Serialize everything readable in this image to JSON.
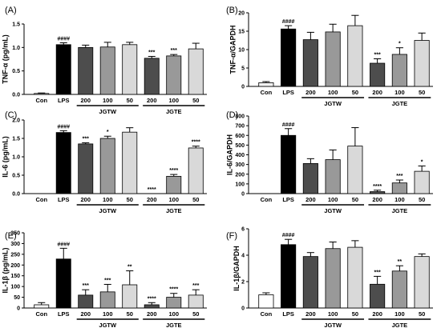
{
  "page_colors": {
    "background": "#ffffff",
    "axis": "#000000"
  },
  "chart_data": [
    {
      "type": "bar",
      "panel": "(A)",
      "ylabel": "TNF-α (pg/mL)",
      "ylim": [
        0,
        1.5
      ],
      "yticks": [
        0.0,
        0.5,
        1.0,
        1.5
      ],
      "ytick_labels": [
        "0.0",
        "0.5",
        "1.0",
        "1.5"
      ],
      "categories": [
        "Con",
        "LPS",
        "200",
        "100",
        "50",
        "200",
        "100",
        "50"
      ],
      "values": [
        0.02,
        1.06,
        1.0,
        1.01,
        1.06,
        0.77,
        0.82,
        0.97
      ],
      "errors": [
        0.01,
        0.04,
        0.05,
        0.1,
        0.05,
        0.04,
        0.03,
        0.12
      ],
      "significance": [
        "",
        "####",
        "",
        "",
        "",
        "***",
        "***",
        ""
      ],
      "colors": [
        "#f2f2f2",
        "#000000",
        "#4d4d4d",
        "#999999",
        "#d9d9d9",
        "#4d4d4d",
        "#999999",
        "#d9d9d9"
      ],
      "groups": [
        {
          "label": "JGTW",
          "from": 2,
          "to": 4
        },
        {
          "label": "JGTE",
          "from": 5,
          "to": 7
        }
      ]
    },
    {
      "type": "bar",
      "panel": "(B)",
      "ylabel": "TNF-α/GAPDH",
      "ylim": [
        0,
        20
      ],
      "yticks": [
        0,
        5,
        10,
        15,
        20
      ],
      "ytick_labels": [
        "0",
        "5",
        "10",
        "15",
        "20"
      ],
      "categories": [
        "Con",
        "LPS",
        "200",
        "100",
        "50",
        "200",
        "100",
        "50"
      ],
      "values": [
        1.0,
        15.6,
        12.7,
        14.8,
        16.5,
        6.3,
        8.7,
        12.5
      ],
      "errors": [
        0.3,
        0.9,
        2.0,
        2.1,
        2.8,
        1.2,
        1.8,
        2.0
      ],
      "significance": [
        "",
        "####",
        "",
        "",
        "",
        "***",
        "*",
        ""
      ],
      "colors": [
        "#f2f2f2",
        "#000000",
        "#4d4d4d",
        "#999999",
        "#d9d9d9",
        "#4d4d4d",
        "#999999",
        "#d9d9d9"
      ],
      "groups": [
        {
          "label": "JGTW",
          "from": 2,
          "to": 4
        },
        {
          "label": "JGTE",
          "from": 5,
          "to": 7
        }
      ]
    },
    {
      "type": "bar",
      "panel": "(C)",
      "ylabel": "IL-6 (pg/mL)",
      "ylim": [
        0,
        2.0
      ],
      "yticks": [
        0.0,
        0.5,
        1.0,
        1.5,
        2.0
      ],
      "ytick_labels": [
        "0.0",
        "0.5",
        "1.0",
        "1.5",
        "2.0"
      ],
      "categories": [
        "Con",
        "LPS",
        "200",
        "100",
        "50",
        "200",
        "100",
        "50"
      ],
      "values": [
        0.0,
        1.66,
        1.35,
        1.5,
        1.67,
        0.0,
        0.47,
        1.24
      ],
      "errors": [
        0.0,
        0.05,
        0.03,
        0.06,
        0.12,
        0.0,
        0.05,
        0.05
      ],
      "significance": [
        "",
        "####",
        "***",
        "*",
        "",
        "****",
        "****",
        "****"
      ],
      "colors": [
        "#f2f2f2",
        "#000000",
        "#4d4d4d",
        "#999999",
        "#d9d9d9",
        "#4d4d4d",
        "#999999",
        "#d9d9d9"
      ],
      "groups": [
        {
          "label": "JGTW",
          "from": 2,
          "to": 4
        },
        {
          "label": "JGTE",
          "from": 5,
          "to": 7
        }
      ]
    },
    {
      "type": "bar",
      "panel": "(D)",
      "ylabel": "IL-6/GAPDH",
      "ylim": [
        0,
        800
      ],
      "yticks": [
        0,
        100,
        200,
        300,
        400,
        500,
        600,
        700,
        800
      ],
      "ytick_labels": [
        "0",
        "100",
        "200",
        "300",
        "400",
        "500",
        "600",
        "700",
        "800"
      ],
      "categories": [
        "Con",
        "LPS",
        "200",
        "100",
        "50",
        "200",
        "100",
        "50"
      ],
      "values": [
        0,
        600,
        310,
        350,
        490,
        20,
        110,
        230
      ],
      "errors": [
        0,
        70,
        50,
        100,
        190,
        15,
        30,
        55
      ],
      "significance": [
        "",
        "####",
        "",
        "",
        "",
        "****",
        "***",
        "*"
      ],
      "colors": [
        "#f2f2f2",
        "#000000",
        "#4d4d4d",
        "#999999",
        "#d9d9d9",
        "#4d4d4d",
        "#999999",
        "#d9d9d9"
      ],
      "groups": [
        {
          "label": "JGTW",
          "from": 2,
          "to": 4
        },
        {
          "label": "JGTE",
          "from": 5,
          "to": 7
        }
      ]
    },
    {
      "type": "bar",
      "panel": "(E)",
      "ylabel": "IL-1β (pg/mL)",
      "ylim": [
        0,
        350
      ],
      "yticks": [
        0,
        50,
        100,
        150,
        200,
        250,
        300,
        350
      ],
      "ytick_labels": [
        "0",
        "50",
        "100",
        "150",
        "200",
        "250",
        "300",
        "350"
      ],
      "categories": [
        "Con",
        "LPS",
        "200",
        "100",
        "50",
        "200",
        "100",
        "50"
      ],
      "values": [
        15,
        228,
        60,
        75,
        108,
        15,
        50,
        60
      ],
      "errors": [
        10,
        50,
        25,
        35,
        65,
        10,
        18,
        25
      ],
      "significance": [
        "",
        "####",
        "***",
        "***",
        "**",
        "****",
        "****",
        "***"
      ],
      "colors": [
        "#f2f2f2",
        "#000000",
        "#4d4d4d",
        "#999999",
        "#d9d9d9",
        "#4d4d4d",
        "#999999",
        "#d9d9d9"
      ],
      "groups": [
        {
          "label": "JGTW",
          "from": 2,
          "to": 4
        },
        {
          "label": "JGTE",
          "from": 5,
          "to": 7
        }
      ]
    },
    {
      "type": "bar",
      "panel": "(F)",
      "ylabel": "IL-1β/GAPDH",
      "ylim": [
        0,
        6
      ],
      "yticks": [
        0,
        2,
        4,
        6
      ],
      "ytick_labels": [
        "0",
        "2",
        "4",
        "6"
      ],
      "categories": [
        "Con",
        "LPS",
        "200",
        "100",
        "50",
        "200",
        "100",
        "50"
      ],
      "values": [
        1.0,
        4.8,
        3.9,
        4.5,
        4.6,
        1.8,
        2.8,
        3.9
      ],
      "errors": [
        0.15,
        0.4,
        0.3,
        0.5,
        0.5,
        0.6,
        0.4,
        0.2
      ],
      "significance": [
        "",
        "####",
        "",
        "",
        "",
        "***",
        "**",
        ""
      ],
      "colors": [
        "#ffffff",
        "#000000",
        "#4d4d4d",
        "#999999",
        "#d9d9d9",
        "#4d4d4d",
        "#999999",
        "#d9d9d9"
      ],
      "groups": [
        {
          "label": "JGTW",
          "from": 2,
          "to": 4
        },
        {
          "label": "JGTE",
          "from": 5,
          "to": 7
        }
      ]
    }
  ]
}
